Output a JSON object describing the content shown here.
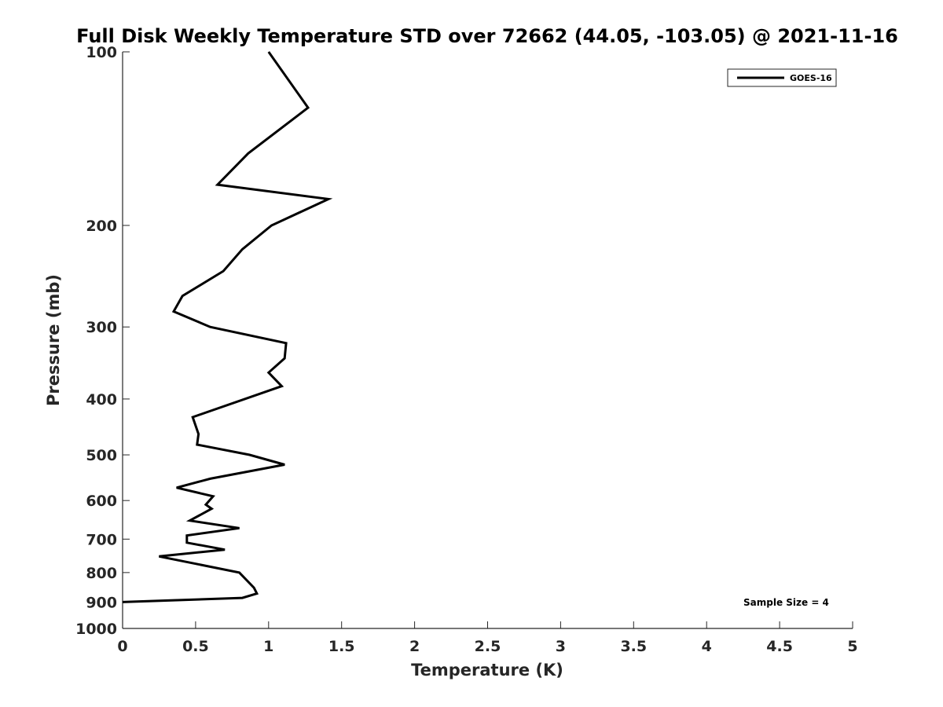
{
  "chart_data": {
    "type": "line",
    "title": "Full Disk Weekly Temperature STD over 72662 (44.05, -103.05) @ 2021-11-16",
    "xlabel": "Temperature (K)",
    "ylabel": "Pressure (mb)",
    "xlim": [
      0,
      5
    ],
    "ylim": [
      100,
      1000
    ],
    "y_scale": "log",
    "y_reversed": true,
    "x_ticks": [
      0,
      0.5,
      1,
      1.5,
      2,
      2.5,
      3,
      3.5,
      4,
      4.5,
      5
    ],
    "x_tick_labels": [
      "0",
      "0.5",
      "1",
      "1.5",
      "2",
      "2.5",
      "3",
      "3.5",
      "4",
      "4.5",
      "5"
    ],
    "y_ticks": [
      100,
      200,
      300,
      400,
      500,
      600,
      700,
      800,
      900,
      1000
    ],
    "y_tick_labels": [
      "100",
      "200",
      "300",
      "400",
      "500",
      "600",
      "700",
      "800",
      "900",
      "1000"
    ],
    "grid": false,
    "legend_position": "top-right",
    "annotation": "Sample Size = 4",
    "series": [
      {
        "name": "GOES-16",
        "color": "#000000",
        "points": [
          {
            "p": 100,
            "t": 1.0
          },
          {
            "p": 125,
            "t": 1.27
          },
          {
            "p": 150,
            "t": 0.86
          },
          {
            "p": 170,
            "t": 0.65
          },
          {
            "p": 180,
            "t": 1.41
          },
          {
            "p": 200,
            "t": 1.02
          },
          {
            "p": 220,
            "t": 0.82
          },
          {
            "p": 240,
            "t": 0.69
          },
          {
            "p": 265,
            "t": 0.41
          },
          {
            "p": 282,
            "t": 0.35
          },
          {
            "p": 300,
            "t": 0.6
          },
          {
            "p": 320,
            "t": 1.12
          },
          {
            "p": 340,
            "t": 1.11
          },
          {
            "p": 360,
            "t": 1.0
          },
          {
            "p": 380,
            "t": 1.09
          },
          {
            "p": 430,
            "t": 0.48
          },
          {
            "p": 460,
            "t": 0.52
          },
          {
            "p": 480,
            "t": 0.51
          },
          {
            "p": 500,
            "t": 0.87
          },
          {
            "p": 520,
            "t": 1.11
          },
          {
            "p": 550,
            "t": 0.6
          },
          {
            "p": 570,
            "t": 0.37
          },
          {
            "p": 590,
            "t": 0.62
          },
          {
            "p": 610,
            "t": 0.57
          },
          {
            "p": 620,
            "t": 0.61
          },
          {
            "p": 650,
            "t": 0.46
          },
          {
            "p": 670,
            "t": 0.8
          },
          {
            "p": 690,
            "t": 0.44
          },
          {
            "p": 710,
            "t": 0.44
          },
          {
            "p": 730,
            "t": 0.7
          },
          {
            "p": 750,
            "t": 0.25
          },
          {
            "p": 800,
            "t": 0.8
          },
          {
            "p": 850,
            "t": 0.9
          },
          {
            "p": 870,
            "t": 0.92
          },
          {
            "p": 885,
            "t": 0.82
          },
          {
            "p": 900,
            "t": 0.0
          }
        ]
      }
    ]
  }
}
